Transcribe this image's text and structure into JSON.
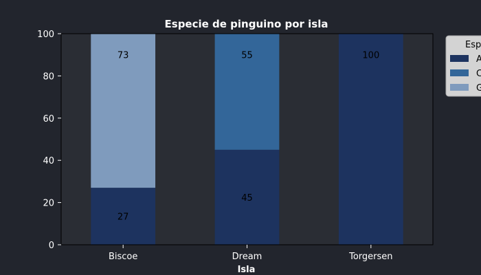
{
  "chart_data": {
    "type": "bar",
    "stacked": true,
    "title": "Especie de pinguino por isla",
    "xlabel": "Isla",
    "ylabel": "",
    "ylim": [
      0,
      100
    ],
    "yticks": [
      0,
      20,
      40,
      60,
      80,
      100
    ],
    "grid": false,
    "categories": [
      "Biscoe",
      "Dream",
      "Torgersen"
    ],
    "series": [
      {
        "name": "A",
        "color": "#1d335f",
        "values": [
          27,
          45,
          100
        ]
      },
      {
        "name": "C",
        "color": "#336699",
        "values": [
          0,
          55,
          0
        ]
      },
      {
        "name": "G",
        "color": "#7f9bbd",
        "values": [
          73,
          0,
          0
        ]
      }
    ],
    "data_labels": [
      {
        "category": "Biscoe",
        "series": "A",
        "text": "27"
      },
      {
        "category": "Biscoe",
        "series": "G",
        "text": "73"
      },
      {
        "category": "Dream",
        "series": "A",
        "text": "45"
      },
      {
        "category": "Dream",
        "series": "C",
        "text": "55"
      },
      {
        "category": "Torgersen",
        "series": "A",
        "text": "100"
      }
    ],
    "legend": {
      "title": "Esp",
      "position": "top-right",
      "entries": [
        "A",
        "C",
        "G"
      ]
    },
    "colors": {
      "background": "#22252d",
      "plot_background": "#2a2d34",
      "text": "#ffffff",
      "data_label": "#000000",
      "legend_background": "#d3d3d3"
    }
  }
}
